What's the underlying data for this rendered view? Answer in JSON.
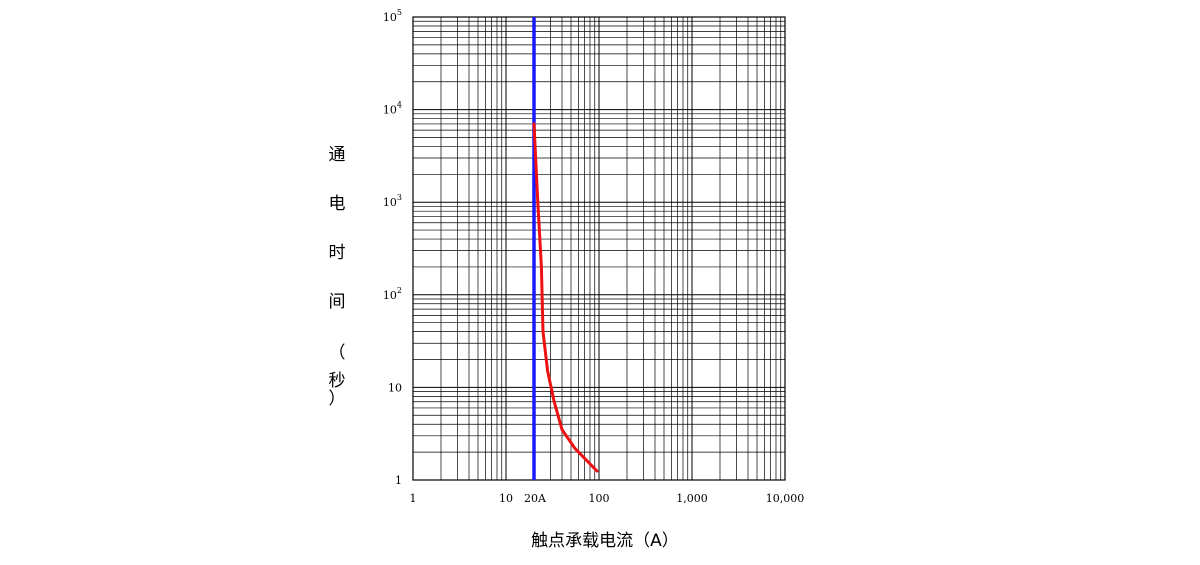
{
  "chart_data": {
    "type": "line",
    "title": "",
    "xlabel": "触点承载电流（A）",
    "ylabel": "通电时间（秒）",
    "x_scale": "log",
    "y_scale": "log",
    "xlim": [
      1,
      10000
    ],
    "ylim": [
      1,
      100000
    ],
    "grid": true,
    "x_ticks": [
      {
        "value": 1,
        "label": "1"
      },
      {
        "value": 10,
        "label": "10"
      },
      {
        "value": 100,
        "label": "100"
      },
      {
        "value": 1000,
        "label": "1,000"
      },
      {
        "value": 10000,
        "label": "10,000"
      }
    ],
    "y_ticks": [
      {
        "value": 1,
        "base": "1",
        "exp": ""
      },
      {
        "value": 10,
        "base": "10",
        "exp": ""
      },
      {
        "value": 100,
        "base": "10",
        "exp": "2"
      },
      {
        "value": 1000,
        "base": "10",
        "exp": "3"
      },
      {
        "value": 10000,
        "base": "10",
        "exp": "4"
      },
      {
        "value": 100000,
        "base": "10",
        "exp": "5"
      }
    ],
    "reference_line": {
      "x": 20,
      "label": "20A",
      "color": "#1a1aff"
    },
    "series": [
      {
        "color": "#ee1111",
        "points": [
          [
            20,
            7000
          ],
          [
            22,
            1000
          ],
          [
            24,
            200
          ],
          [
            25,
            40
          ],
          [
            28,
            15
          ],
          [
            33,
            7
          ],
          [
            40,
            3.5
          ],
          [
            55,
            2.2
          ],
          [
            95,
            1.25
          ]
        ]
      }
    ]
  }
}
